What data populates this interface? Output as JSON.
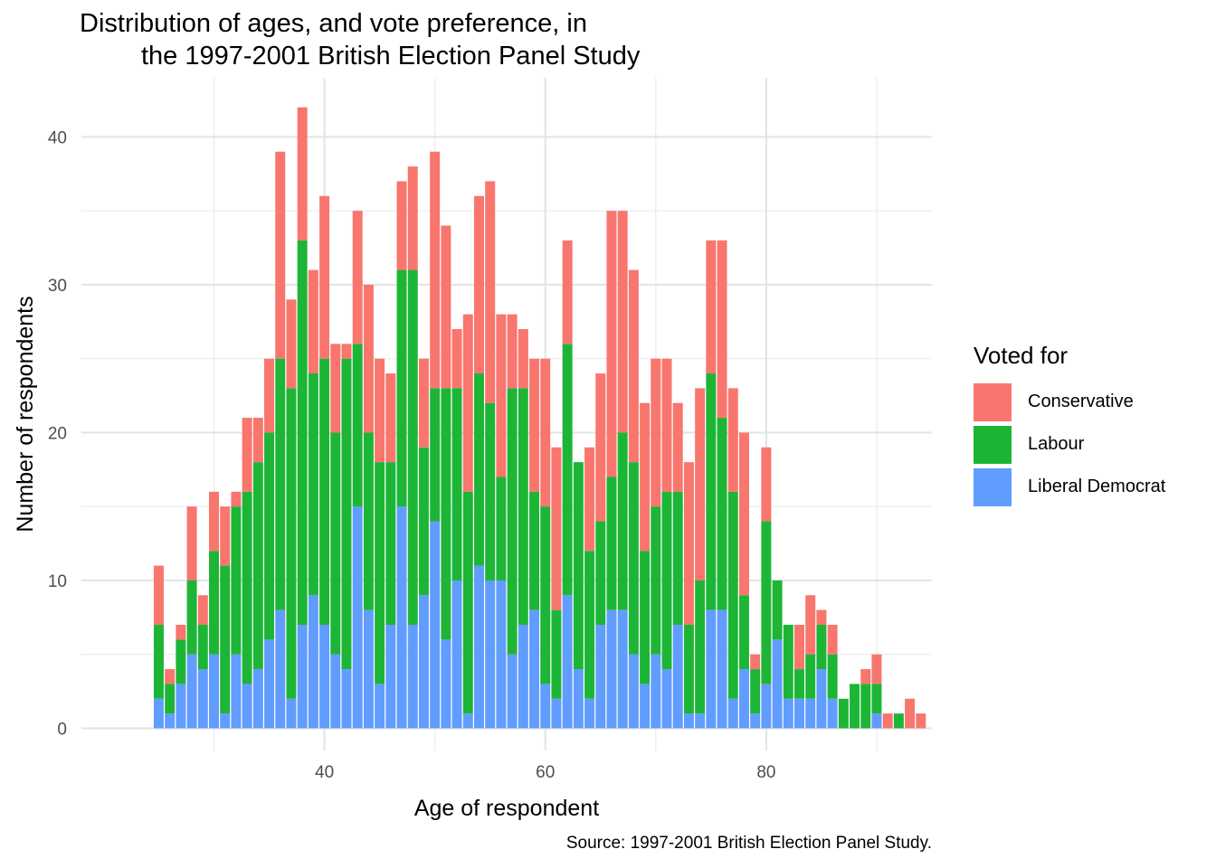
{
  "chart_data": {
    "type": "bar",
    "stacked": true,
    "title": [
      "Distribution of ages, and vote preference, in",
      "the 1997-2001 British Election Panel Study"
    ],
    "xlabel": "Age of respondent",
    "ylabel": "Number of respondents",
    "caption": "Source: 1997-2001 British Election Panel Study.",
    "xlim": [
      18,
      95
    ],
    "ylim": [
      -1.5,
      44
    ],
    "x_ticks": [
      40,
      60,
      80
    ],
    "y_ticks": [
      0,
      10,
      20,
      30,
      40
    ],
    "grid": true,
    "legend_title": "Voted for",
    "legend_position": "right",
    "x": [
      25,
      26,
      27,
      28,
      29,
      30,
      31,
      32,
      33,
      34,
      35,
      36,
      37,
      38,
      39,
      40,
      41,
      42,
      43,
      44,
      45,
      46,
      47,
      48,
      49,
      50,
      51,
      52,
      53,
      54,
      55,
      56,
      57,
      58,
      59,
      60,
      61,
      62,
      63,
      64,
      65,
      66,
      67,
      68,
      69,
      70,
      71,
      72,
      73,
      74,
      75,
      76,
      77,
      78,
      79,
      80,
      81,
      82,
      83,
      84,
      85,
      86,
      87,
      88,
      89,
      90,
      91,
      92,
      93,
      94
    ],
    "series": [
      {
        "name": "Liberal Democrat",
        "color": "#619CFF",
        "values": [
          2,
          1,
          3,
          5,
          4,
          5,
          1,
          5,
          3,
          4,
          6,
          8,
          2,
          7,
          9,
          7,
          5,
          4,
          15,
          8,
          3,
          7,
          15,
          7,
          9,
          14,
          6,
          10,
          1,
          11,
          10,
          10,
          5,
          7,
          8,
          3,
          2,
          9,
          4,
          2,
          7,
          8,
          8,
          5,
          3,
          5,
          4,
          7,
          1,
          1,
          8,
          8,
          2,
          4,
          1,
          3,
          6,
          2,
          2,
          2,
          4,
          2,
          0,
          0,
          0,
          1,
          0,
          0,
          0,
          0
        ]
      },
      {
        "name": "Labour",
        "color": "#1DB536",
        "values": [
          5,
          2,
          3,
          5,
          3,
          7,
          10,
          10,
          13,
          14,
          14,
          17,
          21,
          26,
          15,
          18,
          15,
          21,
          11,
          12,
          15,
          11,
          16,
          24,
          10,
          9,
          17,
          13,
          15,
          13,
          12,
          7,
          18,
          16,
          8,
          12,
          6,
          17,
          14,
          10,
          7,
          9,
          12,
          13,
          9,
          10,
          12,
          9,
          6,
          9,
          16,
          13,
          14,
          5,
          3,
          11,
          4,
          5,
          2,
          3,
          3,
          3,
          2,
          3,
          3,
          2,
          0,
          1,
          0,
          0
        ]
      },
      {
        "name": "Conservative",
        "color": "#F8766D",
        "values": [
          4,
          1,
          1,
          5,
          2,
          4,
          4,
          1,
          5,
          3,
          5,
          14,
          6,
          9,
          7,
          11,
          6,
          1,
          9,
          10,
          7,
          6,
          6,
          7,
          6,
          16,
          11,
          4,
          12,
          12,
          15,
          11,
          5,
          4,
          9,
          10,
          11,
          7,
          0,
          7,
          10,
          18,
          15,
          13,
          10,
          10,
          9,
          6,
          11,
          13,
          9,
          12,
          7,
          11,
          1,
          5,
          0,
          0,
          3,
          4,
          1,
          2,
          0,
          0,
          1,
          2,
          1,
          0,
          2,
          1
        ]
      }
    ],
    "legend_order": [
      "Conservative",
      "Labour",
      "Liberal Democrat"
    ]
  }
}
